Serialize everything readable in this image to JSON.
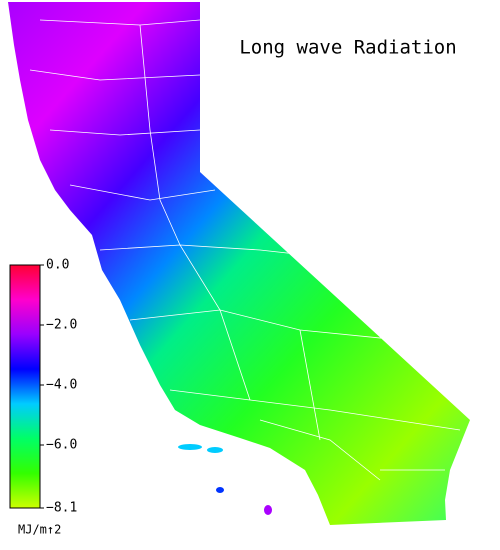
{
  "title": "Long wave Radiation",
  "colorbar": {
    "unit": "MJ/m↑2",
    "range": [
      -8.1,
      0
    ],
    "colors": [
      "#ff0033",
      "#ff00cc",
      "#9900ff",
      "#0000ff",
      "#00ccff",
      "#00ff66",
      "#33ff00",
      "#ccff00"
    ],
    "ticks": [
      {
        "value": 0,
        "label": "0.0"
      },
      {
        "value": -2,
        "label": "−2.0"
      },
      {
        "value": -4,
        "label": "−4.0"
      },
      {
        "value": -6,
        "label": "−6.0"
      },
      {
        "value": -8.1,
        "label": "−8.1"
      }
    ]
  }
}
